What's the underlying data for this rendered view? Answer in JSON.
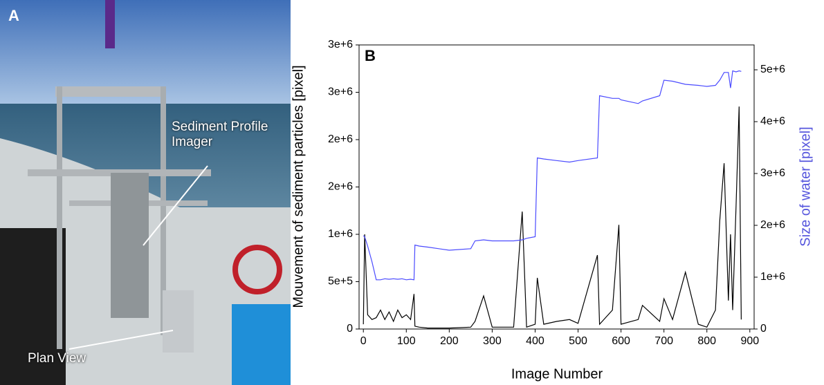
{
  "panel_a": {
    "label": "A",
    "annotations": [
      "Sediment Profile Imager",
      "Plan View"
    ]
  },
  "chart_data": {
    "type": "line",
    "panel_label": "B",
    "x_label": "Image Number",
    "y_label": "Mouvement of sediment particles [pixel]",
    "y2_label": "Size of water [pixel]",
    "x": [
      0,
      3,
      10,
      20,
      30,
      40,
      50,
      60,
      70,
      80,
      90,
      100,
      110,
      118,
      120,
      130,
      150,
      200,
      250,
      260,
      280,
      300,
      350,
      370,
      380,
      400,
      405,
      420,
      450,
      480,
      500,
      545,
      550,
      580,
      595,
      600,
      640,
      650,
      690,
      700,
      720,
      750,
      780,
      800,
      820,
      830,
      840,
      850,
      855,
      860,
      868,
      875,
      880
    ],
    "series": [
      {
        "color": "#000000",
        "values": [
          50000,
          1000000,
          150000,
          100000,
          120000,
          200000,
          100000,
          180000,
          80000,
          200000,
          120000,
          150000,
          100000,
          370000,
          30000,
          20000,
          10000,
          10000,
          20000,
          80000,
          350000,
          20000,
          20000,
          1240000,
          20000,
          50000,
          540000,
          50000,
          80000,
          100000,
          60000,
          780000,
          50000,
          200000,
          1100000,
          50000,
          100000,
          250000,
          80000,
          320000,
          100000,
          600000,
          50000,
          20000,
          200000,
          1140000,
          1750000,
          300000,
          1000000,
          200000,
          1300000,
          2350000,
          100000
        ]
      },
      {
        "color": "#4a4aff",
        "axis": "y2",
        "values": [
          1800000,
          1780000,
          1600000,
          1300000,
          950000,
          950000,
          970000,
          960000,
          970000,
          960000,
          970000,
          950000,
          960000,
          950000,
          1620000,
          1600000,
          1580000,
          1520000,
          1550000,
          1700000,
          1720000,
          1700000,
          1700000,
          1720000,
          1750000,
          1780000,
          3300000,
          3280000,
          3250000,
          3220000,
          3250000,
          3300000,
          4500000,
          4450000,
          4450000,
          4420000,
          4350000,
          4400000,
          4500000,
          4800000,
          4780000,
          4720000,
          4700000,
          4680000,
          4700000,
          4800000,
          4950000,
          4950000,
          4650000,
          4980000,
          4960000,
          4980000,
          4970000
        ]
      }
    ],
    "xlim": [
      -10,
      910
    ],
    "xticks": [
      0,
      100,
      200,
      300,
      400,
      500,
      600,
      700,
      800,
      900
    ],
    "ylim": [
      0,
      3000000
    ],
    "yticks": [
      0,
      {
        "value": 500000,
        "label": "5e+5"
      },
      {
        "value": 1000000,
        "label": "1e+6"
      },
      {
        "value": 1500000,
        "label": "2e+6"
      },
      {
        "value": 2000000,
        "label": "2e+6"
      },
      {
        "value": 2500000,
        "label": "3e+6"
      },
      {
        "value": 3000000,
        "label": "3e+6"
      }
    ],
    "y2lim": [
      0,
      5480000
    ],
    "y2ticks": [
      0,
      {
        "value": 1000000,
        "label": "1e+6"
      },
      {
        "value": 2000000,
        "label": "2e+6"
      },
      {
        "value": 3000000,
        "label": "3e+6"
      },
      {
        "value": 4000000,
        "label": "4e+6"
      },
      {
        "value": 5000000,
        "label": "5e+6"
      }
    ],
    "y2_color": "#5555dd"
  }
}
